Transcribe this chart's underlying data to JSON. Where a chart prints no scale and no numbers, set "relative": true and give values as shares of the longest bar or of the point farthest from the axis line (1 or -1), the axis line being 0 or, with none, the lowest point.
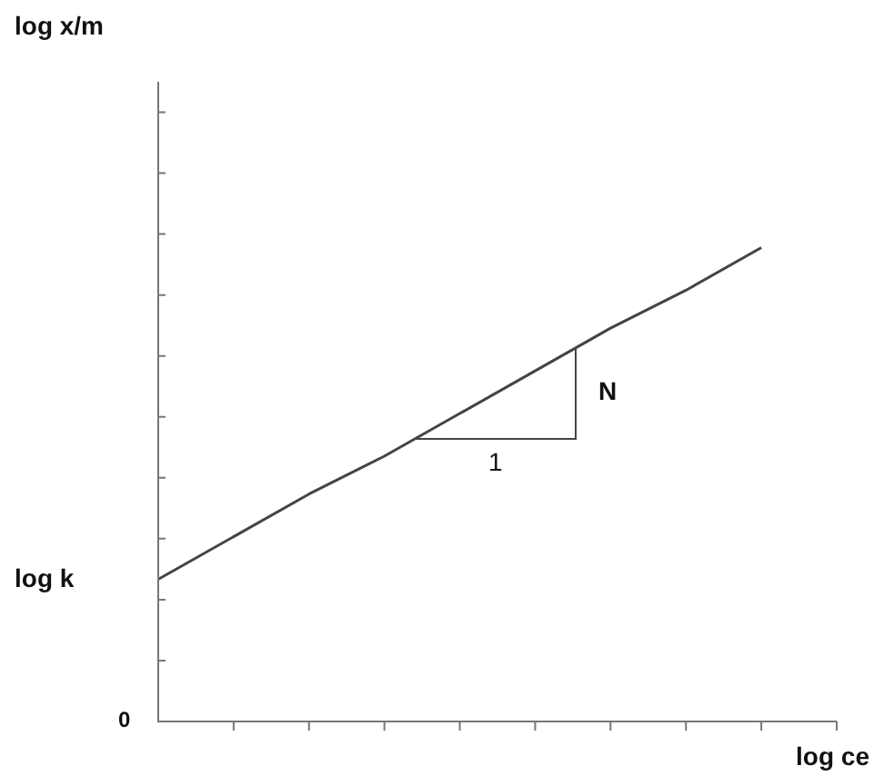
{
  "chart_data": {
    "type": "line",
    "relative": true,
    "xlabel": "log ce",
    "categories": [
      null,
      null,
      null,
      null,
      null,
      null,
      null,
      null,
      null,
      null
    ],
    "series": [
      {
        "color": "#444444",
        "values": [
          0.3,
          0.39,
          0.48,
          0.56,
          0.65,
          0.74,
          0.83,
          0.91,
          1.0,
          null
        ]
      }
    ],
    "annotations": [
      "log k",
      "N",
      "1",
      "0",
      "log x/m"
    ],
    "legend": false,
    "marker": "none",
    "line_style": "solid"
  }
}
